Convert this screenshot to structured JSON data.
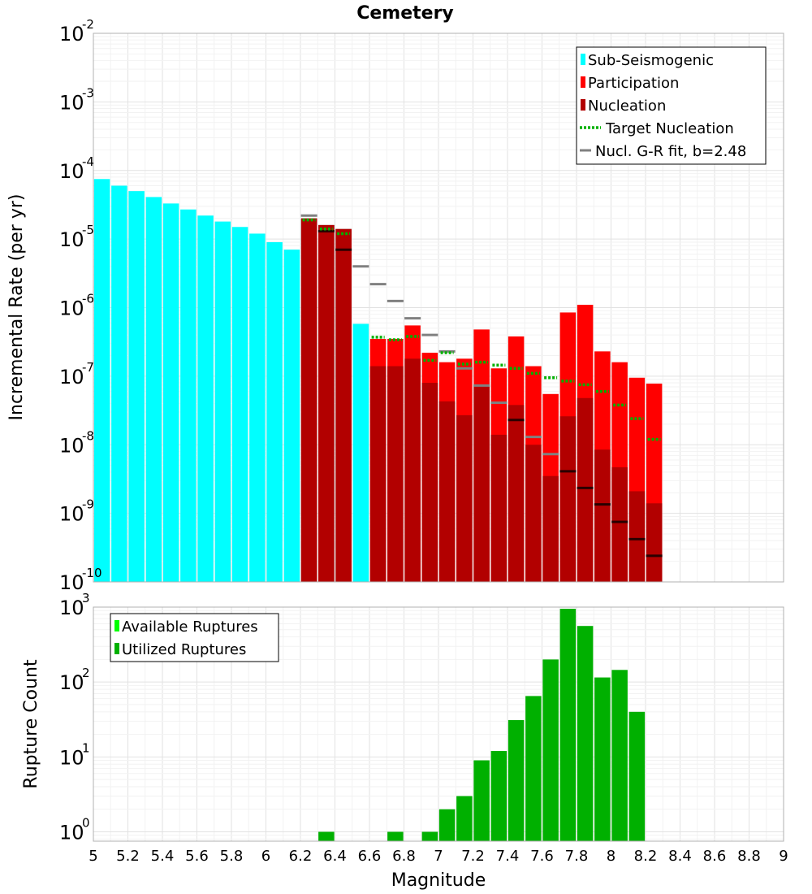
{
  "title": "Cemetery",
  "colors": {
    "sub_seismogenic": "#00ffff",
    "participation": "#ff0000",
    "nucleation": "#b20000",
    "target_nucleation": "#00b000",
    "gr_fit": "#808080",
    "gr_fit_overlay": "#2a0000",
    "available_ruptures": "#00ff00",
    "utilized_ruptures": "#00b000",
    "grid_major": "#e2e2e2",
    "grid_minor": "#f2f2f2"
  },
  "chart_data": [
    {
      "type": "bar",
      "name": "rate-panel",
      "ylabel": "Incremental Rate (per yr)",
      "xlabel": "",
      "xlim": [
        5,
        9
      ],
      "ylim": [
        1e-10,
        0.01
      ],
      "yscale": "log",
      "grid": true,
      "legend_position": "top-right",
      "ytick_labels": [
        {
          "base": "10",
          "exp": "-10"
        },
        {
          "base": "10",
          "exp": "-9"
        },
        {
          "base": "10",
          "exp": "-8"
        },
        {
          "base": "10",
          "exp": "-7"
        },
        {
          "base": "10",
          "exp": "-6"
        },
        {
          "base": "10",
          "exp": "-5"
        },
        {
          "base": "10",
          "exp": "-4"
        },
        {
          "base": "10",
          "exp": "-3"
        },
        {
          "base": "10",
          "exp": "-2"
        }
      ],
      "legend": [
        "Sub-Seismogenic",
        "Participation",
        "Nucleation",
        "Target Nucleation",
        "Nucl. G-R fit, b=2.48"
      ],
      "series": [
        {
          "name": "Sub-Seismogenic",
          "x": [
            5.05,
            5.15,
            5.25,
            5.35,
            5.45,
            5.55,
            5.65,
            5.75,
            5.85,
            5.95,
            6.05,
            6.15,
            6.25,
            6.35,
            6.45,
            6.55
          ],
          "values": [
            7.5e-05,
            6e-05,
            5e-05,
            4.1e-05,
            3.3e-05,
            2.7e-05,
            2.2e-05,
            1.8e-05,
            1.5e-05,
            1.2e-05,
            9e-06,
            7e-06,
            2e-05,
            1.6e-05,
            1.4e-05,
            5.8e-07
          ]
        },
        {
          "name": "Participation",
          "x": [
            6.25,
            6.35,
            6.45,
            6.65,
            6.75,
            6.85,
            6.95,
            7.05,
            7.15,
            7.25,
            7.35,
            7.45,
            7.55,
            7.65,
            7.75,
            7.85,
            7.95,
            8.05,
            8.15,
            8.25
          ],
          "values": [
            2e-05,
            1.6e-05,
            1.4e-05,
            3.5e-07,
            3.5e-07,
            5.5e-07,
            2.2e-07,
            1.6e-07,
            1.8e-07,
            4.8e-07,
            1.3e-07,
            3.8e-07,
            1.4e-07,
            5.5e-08,
            8.5e-07,
            1.1e-06,
            2.3e-07,
            1.6e-07,
            9.5e-08,
            7.8e-08
          ]
        },
        {
          "name": "Nucleation",
          "x": [
            6.25,
            6.35,
            6.45,
            6.65,
            6.75,
            6.85,
            6.95,
            7.05,
            7.15,
            7.25,
            7.35,
            7.45,
            7.55,
            7.65,
            7.75,
            7.85,
            7.95,
            8.05,
            8.15,
            8.25
          ],
          "values": [
            2e-05,
            1.6e-05,
            1.4e-05,
            1.4e-07,
            1.4e-07,
            1.8e-07,
            8e-08,
            4.3e-08,
            2.7e-08,
            7.3e-08,
            1.4e-08,
            3.8e-08,
            1e-08,
            3.5e-09,
            2.6e-08,
            4.8e-08,
            8.5e-09,
            4.7e-09,
            2.1e-09,
            1.4e-09
          ]
        },
        {
          "name": "Target Nucleation",
          "x": [
            6.25,
            6.35,
            6.45,
            6.65,
            6.75,
            6.85,
            6.95,
            7.05,
            7.15,
            7.25,
            7.35,
            7.45,
            7.55,
            7.65,
            7.75,
            7.85,
            7.95,
            8.05,
            8.15,
            8.25
          ],
          "values": [
            1.9e-05,
            1.4e-05,
            1.2e-05,
            3.7e-07,
            3.4e-07,
            3.8e-07,
            1.7e-07,
            2.2e-07,
            1.5e-07,
            1.6e-07,
            1.45e-07,
            1.3e-07,
            1.1e-07,
            9.5e-08,
            8.5e-08,
            7.5e-08,
            6e-08,
            3.8e-08,
            2.4e-08,
            1.2e-08
          ]
        },
        {
          "name": "Nucl. G-R fit, b=2.48",
          "x": [
            6.25,
            6.35,
            6.45,
            6.55,
            6.65,
            6.75,
            6.85,
            6.95,
            7.05,
            7.15,
            7.25,
            7.35,
            7.45,
            7.55,
            7.65,
            7.75,
            7.85,
            7.95,
            8.05,
            8.15,
            8.25
          ],
          "values": [
            2.2e-05,
            1.3e-05,
            7e-06,
            4e-06,
            2.2e-06,
            1.25e-06,
            7e-07,
            4e-07,
            2.3e-07,
            1.3e-07,
            7.3e-08,
            4.1e-08,
            2.3e-08,
            1.3e-08,
            7.3e-09,
            4.1e-09,
            2.35e-09,
            1.35e-09,
            7.5e-10,
            4.2e-10,
            2.4e-10
          ]
        }
      ]
    },
    {
      "type": "bar",
      "name": "count-panel",
      "ylabel": "Rupture Count",
      "xlabel": "Magnitude",
      "xlim": [
        5,
        9
      ],
      "ylim": [
        0.75,
        1000
      ],
      "yscale": "log",
      "grid": true,
      "legend_position": "top-left",
      "ytick_labels": [
        {
          "base": "10",
          "exp": "0"
        },
        {
          "base": "10",
          "exp": "1"
        },
        {
          "base": "10",
          "exp": "2"
        },
        {
          "base": "10",
          "exp": "3"
        }
      ],
      "xtick_labels": [
        "5",
        "5.2",
        "5.4",
        "5.6",
        "5.8",
        "6",
        "6.2",
        "6.4",
        "6.6",
        "6.8",
        "7",
        "7.2",
        "7.4",
        "7.6",
        "7.8",
        "8",
        "8.2",
        "8.4",
        "8.6",
        "8.8",
        "9"
      ],
      "legend": [
        "Available Ruptures",
        "Utilized Ruptures"
      ],
      "series": [
        {
          "name": "Utilized Ruptures",
          "x": [
            6.35,
            6.75,
            6.95,
            7.05,
            7.15,
            7.25,
            7.35,
            7.45,
            7.55,
            7.65,
            7.75,
            7.85,
            7.95,
            8.05,
            8.15
          ],
          "values": [
            1,
            1,
            1,
            2,
            3,
            9,
            12,
            31,
            65,
            200,
            950,
            560,
            115,
            145,
            40
          ]
        }
      ]
    }
  ]
}
